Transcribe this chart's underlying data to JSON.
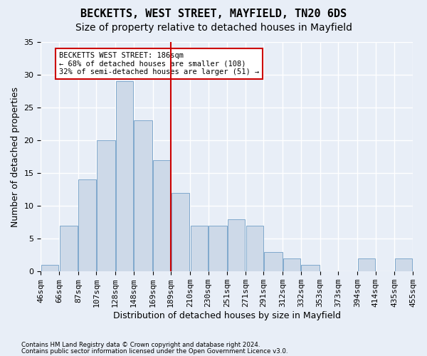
{
  "title1": "BECKETTS, WEST STREET, MAYFIELD, TN20 6DS",
  "title2": "Size of property relative to detached houses in Mayfield",
  "xlabel": "Distribution of detached houses by size in Mayfield",
  "ylabel": "Number of detached properties",
  "bar_color": "#cdd9e8",
  "bar_edge_color": "#7fa8cc",
  "vline_color": "#cc0000",
  "bins": [
    46,
    66,
    87,
    107,
    128,
    148,
    169,
    189,
    210,
    230,
    251,
    271,
    291,
    312,
    332,
    353,
    373,
    394,
    414,
    435,
    455
  ],
  "bin_labels": [
    "46sqm",
    "66sqm",
    "87sqm",
    "107sqm",
    "128sqm",
    "148sqm",
    "169sqm",
    "189sqm",
    "210sqm",
    "230sqm",
    "251sqm",
    "271sqm",
    "291sqm",
    "312sqm",
    "332sqm",
    "353sqm",
    "373sqm",
    "394sqm",
    "414sqm",
    "435sqm",
    "455sqm"
  ],
  "counts": [
    1,
    7,
    14,
    20,
    29,
    23,
    17,
    12,
    7,
    7,
    8,
    7,
    3,
    2,
    1,
    0,
    0,
    2,
    0,
    2
  ],
  "ylim": [
    0,
    35
  ],
  "yticks": [
    0,
    5,
    10,
    15,
    20,
    25,
    30,
    35
  ],
  "annotation_text": "BECKETTS WEST STREET: 186sqm\n← 68% of detached houses are smaller (108)\n32% of semi-detached houses are larger (51) →",
  "annotation_box_color": "#ffffff",
  "annotation_box_edge_color": "#cc0000",
  "footer1": "Contains HM Land Registry data © Crown copyright and database right 2024.",
  "footer2": "Contains public sector information licensed under the Open Government Licence v3.0.",
  "background_color": "#e8eef7",
  "grid_color": "#ffffff",
  "title1_fontsize": 11,
  "title2_fontsize": 10,
  "xlabel_fontsize": 9,
  "ylabel_fontsize": 9,
  "tick_fontsize": 8
}
